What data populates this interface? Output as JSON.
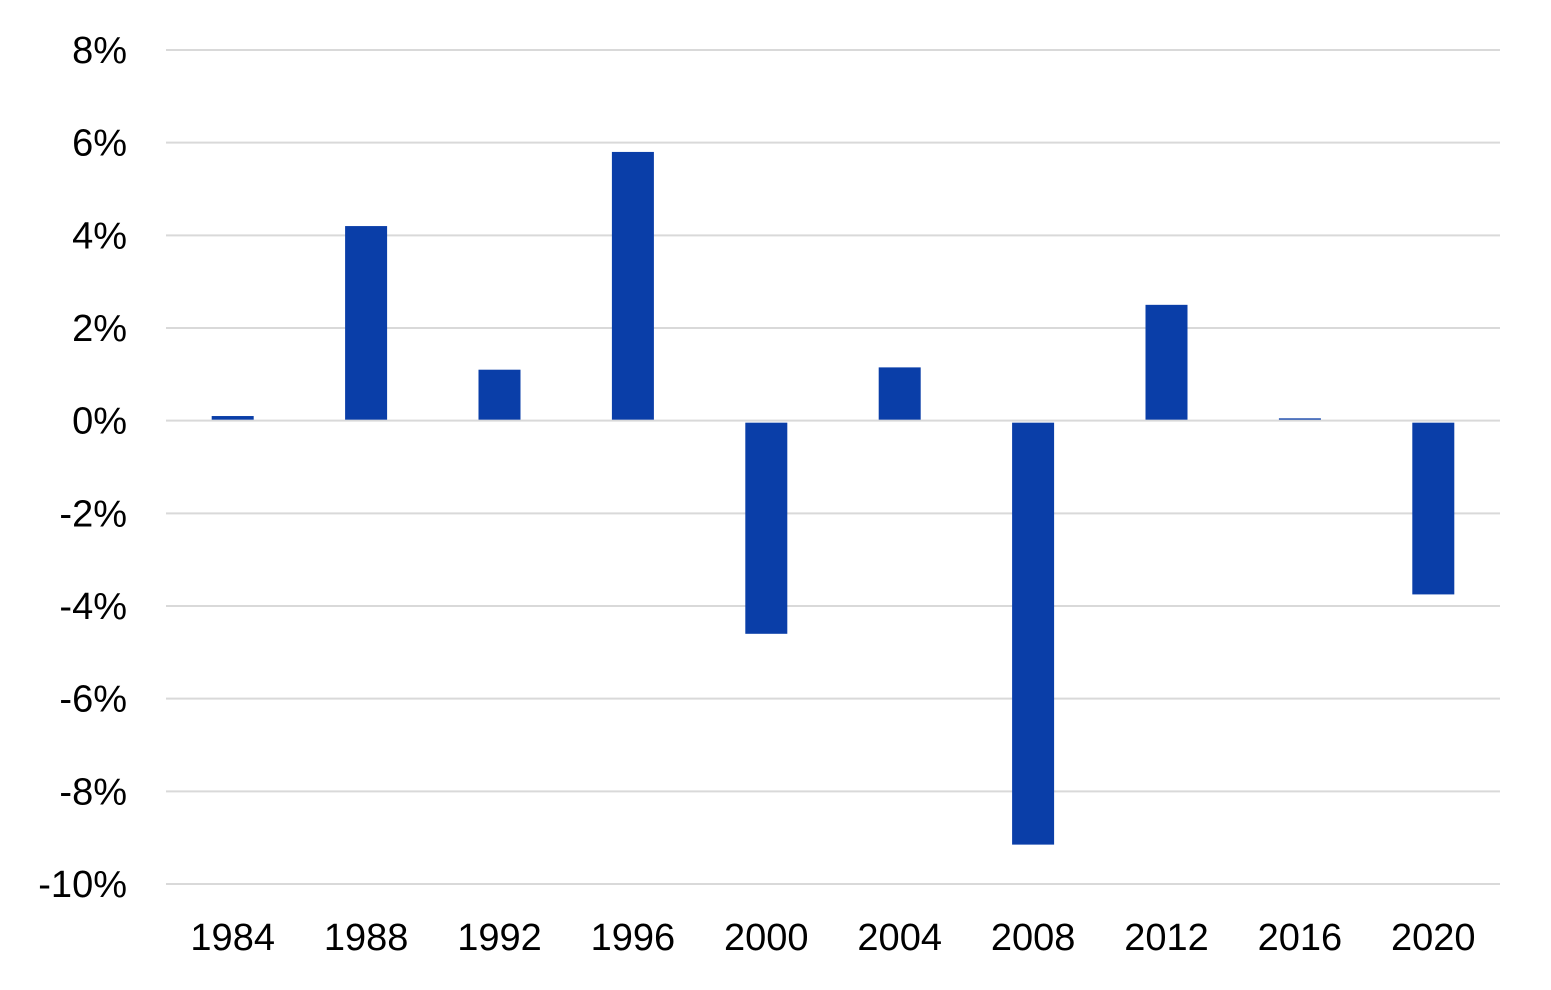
{
  "chart_data": {
    "type": "bar",
    "categories": [
      "1984",
      "1988",
      "1992",
      "1996",
      "2000",
      "2004",
      "2008",
      "2012",
      "2016",
      "2020"
    ],
    "values": [
      0.1,
      4.2,
      1.1,
      5.8,
      -4.6,
      1.15,
      -9.15,
      2.5,
      0.05,
      -3.75
    ],
    "ylim": [
      -10,
      8
    ],
    "yticks": [
      8,
      6,
      4,
      2,
      0,
      -2,
      -4,
      -6,
      -8,
      -10
    ],
    "ytick_labels": [
      "8%",
      "6%",
      "4%",
      "2%",
      "0%",
      "-2%",
      "-4%",
      "-6%",
      "-8%",
      "-10%"
    ],
    "grid": true,
    "legend": "none",
    "bar_color": "#0a3ea8"
  }
}
